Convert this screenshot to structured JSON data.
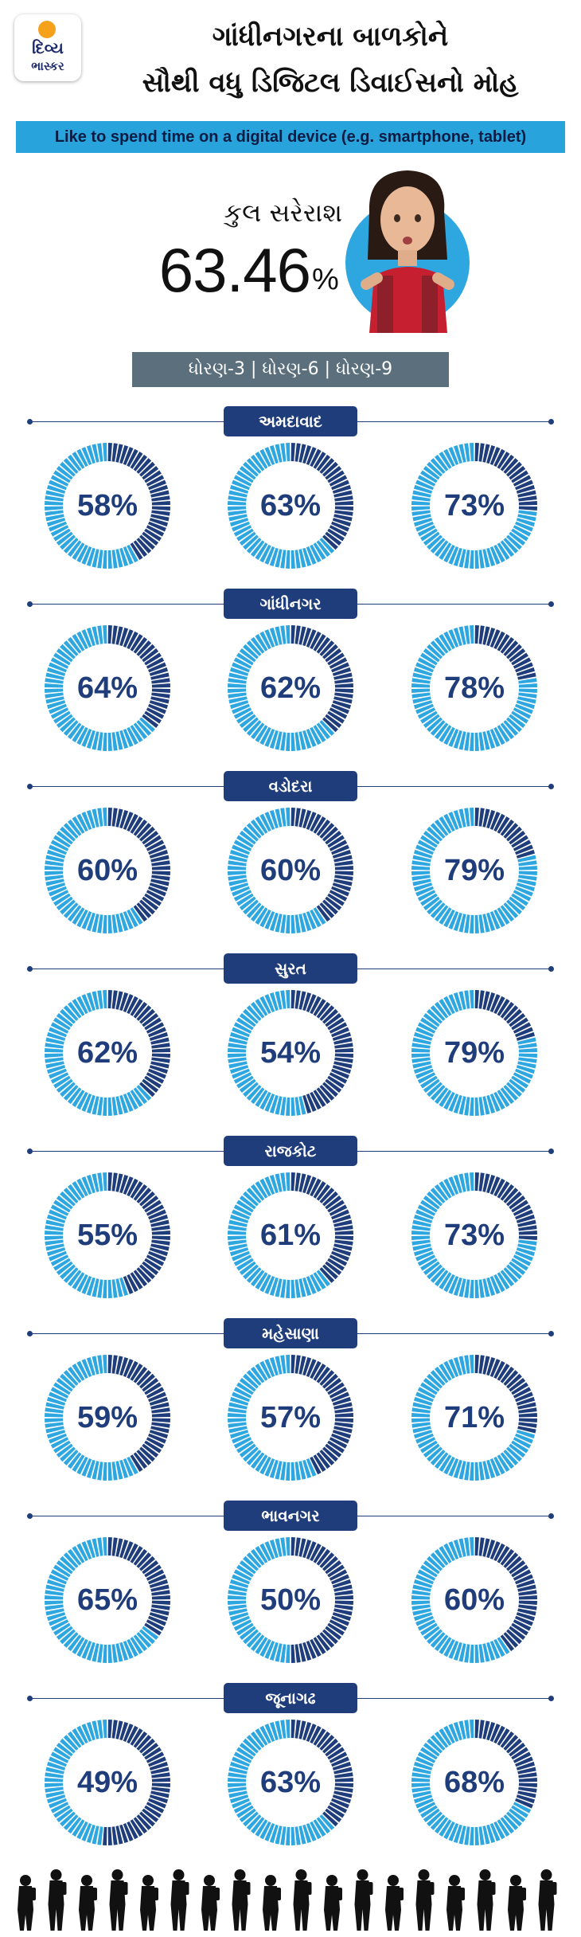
{
  "logo": {
    "line1": "દિવ્ય",
    "line2": "ભાસ્કર"
  },
  "header": {
    "title_line1": "ગાંધીનગરના બાળકોને",
    "title_line2": "સૌથી વધુ ડિજિટલ ડિવાઈસનો મોહ"
  },
  "banner": "Like to spend time on a digital device (e.g. smartphone, tablet)",
  "overall": {
    "label": "કુલ સરેરાશ",
    "value": "63.46",
    "unit": "%"
  },
  "grades_label": "ધોરણ-3 | ધોરણ-6 | ધોરણ-9",
  "colors": {
    "light_blue": "#2ea7e0",
    "dark_navy": "#1f3d7a",
    "banner_bg": "#29a3dc",
    "grade_bar": "#5b6f7d"
  },
  "chart_data": {
    "type": "donut",
    "categories": [
      "ધોરણ-3",
      "ધોરણ-6",
      "ધોરણ-9"
    ],
    "cities": [
      {
        "name": "અમદાવાદ",
        "values": [
          58,
          63,
          73
        ],
        "labels": [
          "58%",
          "63%",
          "73%"
        ]
      },
      {
        "name": "ગાંધીનગર",
        "values": [
          64,
          62,
          78
        ],
        "labels": [
          "64%",
          "62%",
          "78%"
        ]
      },
      {
        "name": "વડોદરા",
        "values": [
          60,
          60,
          79
        ],
        "labels": [
          "60%",
          "60%",
          "79%"
        ]
      },
      {
        "name": "સુરત",
        "values": [
          62,
          54,
          79
        ],
        "labels": [
          "62%",
          "54%",
          "79%"
        ]
      },
      {
        "name": "રાજકોટ",
        "values": [
          55,
          61,
          73
        ],
        "labels": [
          "55%",
          "61%",
          "73%"
        ]
      },
      {
        "name": "મહેસાણા",
        "values": [
          59,
          57,
          71
        ],
        "labels": [
          "59%",
          "57%",
          "71%"
        ]
      },
      {
        "name": "ભાવનગર",
        "values": [
          65,
          50,
          60
        ],
        "labels": [
          "65%",
          "50%",
          "60%"
        ]
      },
      {
        "name": "જૂનાગઢ",
        "values": [
          49,
          63,
          68
        ],
        "labels": [
          "49%",
          "63%",
          "68%"
        ]
      }
    ]
  }
}
